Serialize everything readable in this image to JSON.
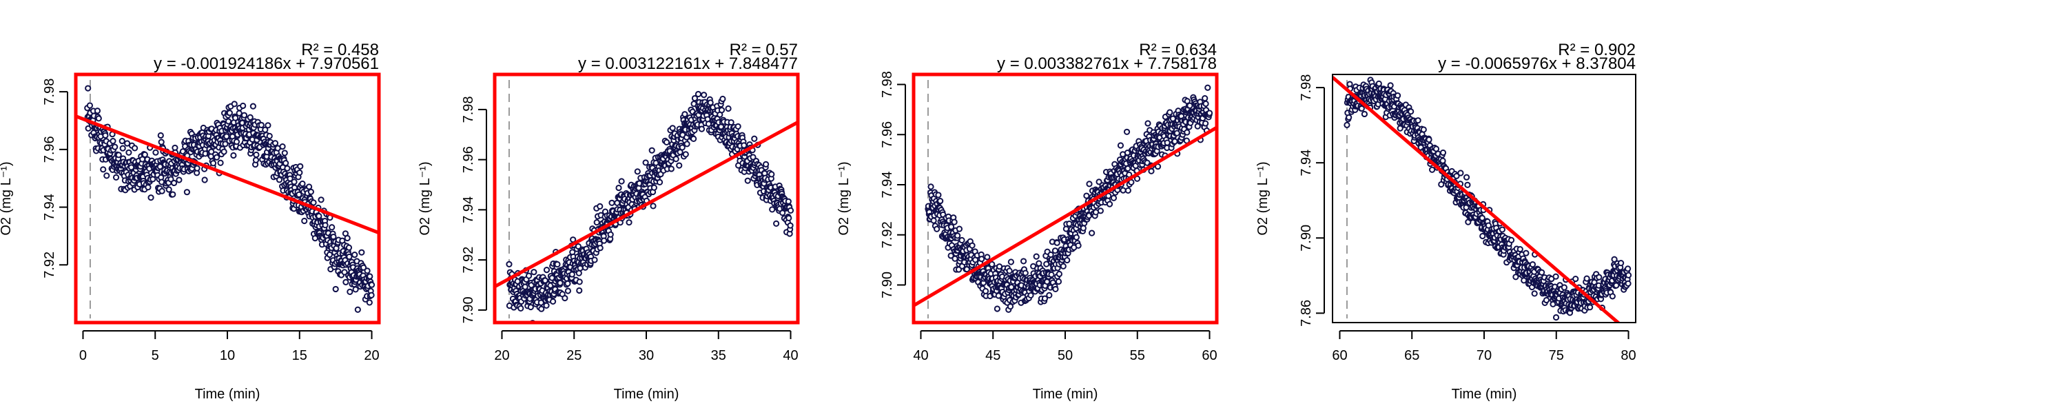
{
  "chart_data": [
    {
      "type": "scatter",
      "title": "",
      "xlabel": "Time (min)",
      "ylabel": "O2 (mg L⁻¹)",
      "xlim": [
        -0.5,
        20.5
      ],
      "ylim": [
        7.9,
        7.986
      ],
      "xticks": [
        0,
        5,
        10,
        15,
        20
      ],
      "yticks": [
        7.92,
        7.94,
        7.96,
        7.98
      ],
      "r2_label": "R² = 0.458",
      "equation": "y = -0.001924186x + 7.970561",
      "fit": {
        "slope": -0.001924186,
        "intercept": 7.970561
      },
      "start_marker_x": 0.5,
      "frame_color": "#ff0000",
      "trend_points": [
        [
          0.3,
          7.97
        ],
        [
          1,
          7.968
        ],
        [
          2,
          7.957
        ],
        [
          3,
          7.952
        ],
        [
          4,
          7.953
        ],
        [
          5,
          7.955
        ],
        [
          6,
          7.952
        ],
        [
          7,
          7.957
        ],
        [
          8,
          7.96
        ],
        [
          9,
          7.962
        ],
        [
          10,
          7.967
        ],
        [
          11,
          7.968
        ],
        [
          12,
          7.963
        ],
        [
          13,
          7.959
        ],
        [
          14,
          7.95
        ],
        [
          15,
          7.945
        ],
        [
          16,
          7.937
        ],
        [
          17,
          7.928
        ],
        [
          18,
          7.922
        ],
        [
          19,
          7.917
        ],
        [
          20,
          7.912
        ]
      ],
      "noise": 0.004
    },
    {
      "type": "scatter",
      "title": "",
      "xlabel": "Time (min)",
      "ylabel": "O2 (mg L⁻¹)",
      "xlim": [
        19.5,
        40.5
      ],
      "ylim": [
        7.895,
        7.994
      ],
      "xticks": [
        20,
        25,
        30,
        35,
        40
      ],
      "yticks": [
        7.9,
        7.92,
        7.94,
        7.96,
        7.98
      ],
      "r2_label": "R² = 0.57",
      "equation": "y = 0.003122161x + 7.848477",
      "fit": {
        "slope": 0.003122161,
        "intercept": 7.848477
      },
      "start_marker_x": 20.5,
      "frame_color": "#ff0000",
      "trend_points": [
        [
          20.5,
          7.91
        ],
        [
          21,
          7.906
        ],
        [
          22,
          7.907
        ],
        [
          23,
          7.908
        ],
        [
          24,
          7.912
        ],
        [
          25,
          7.918
        ],
        [
          26,
          7.924
        ],
        [
          27,
          7.932
        ],
        [
          28,
          7.94
        ],
        [
          29,
          7.945
        ],
        [
          30,
          7.95
        ],
        [
          31,
          7.958
        ],
        [
          32,
          7.966
        ],
        [
          33,
          7.974
        ],
        [
          34,
          7.98
        ],
        [
          35,
          7.975
        ],
        [
          36,
          7.968
        ],
        [
          37,
          7.96
        ],
        [
          38,
          7.953
        ],
        [
          39,
          7.945
        ],
        [
          40,
          7.937
        ]
      ],
      "noise": 0.004
    },
    {
      "type": "scatter",
      "title": "",
      "xlabel": "Time (min)",
      "ylabel": "O2 (mg L⁻¹)",
      "xlim": [
        39.5,
        60.5
      ],
      "ylim": [
        7.885,
        7.984
      ],
      "xticks": [
        40,
        45,
        50,
        55,
        60
      ],
      "yticks": [
        7.9,
        7.92,
        7.94,
        7.96,
        7.98
      ],
      "r2_label": "R² = 0.634",
      "equation": "y = 0.003382761x + 7.758178",
      "fit": {
        "slope": 0.003382761,
        "intercept": 7.758178
      },
      "start_marker_x": 40.5,
      "frame_color": "#ff0000",
      "trend_points": [
        [
          40.5,
          7.93
        ],
        [
          41,
          7.932
        ],
        [
          42,
          7.92
        ],
        [
          43,
          7.912
        ],
        [
          44,
          7.905
        ],
        [
          45,
          7.9
        ],
        [
          46,
          7.899
        ],
        [
          47,
          7.899
        ],
        [
          48,
          7.901
        ],
        [
          49,
          7.905
        ],
        [
          50,
          7.915
        ],
        [
          51,
          7.925
        ],
        [
          52,
          7.933
        ],
        [
          53,
          7.94
        ],
        [
          54,
          7.946
        ],
        [
          55,
          7.95
        ],
        [
          56,
          7.955
        ],
        [
          57,
          7.96
        ],
        [
          58,
          7.964
        ],
        [
          59,
          7.968
        ],
        [
          60,
          7.972
        ]
      ],
      "noise": 0.004
    },
    {
      "type": "scatter",
      "title": "",
      "xlabel": "Time (min)",
      "ylabel": "O2 (mg L⁻¹)",
      "xlim": [
        59.5,
        80.5
      ],
      "ylim": [
        7.855,
        7.987
      ],
      "xticks": [
        60,
        65,
        70,
        75,
        80
      ],
      "yticks": [
        7.86,
        7.9,
        7.94,
        7.98
      ],
      "r2_label": "R² = 0.902",
      "equation": "y = -0.0065976x + 8.37804",
      "fit": {
        "slope": -0.0065976,
        "intercept": 8.37804
      },
      "start_marker_x": 60.5,
      "frame_color": "#000000",
      "trend_points": [
        [
          60.5,
          7.968
        ],
        [
          61,
          7.972
        ],
        [
          62,
          7.976
        ],
        [
          63,
          7.975
        ],
        [
          64,
          7.968
        ],
        [
          65,
          7.96
        ],
        [
          66,
          7.95
        ],
        [
          67,
          7.938
        ],
        [
          68,
          7.927
        ],
        [
          69,
          7.918
        ],
        [
          70,
          7.908
        ],
        [
          71,
          7.9
        ],
        [
          72,
          7.89
        ],
        [
          73,
          7.882
        ],
        [
          74,
          7.875
        ],
        [
          75,
          7.869
        ],
        [
          76,
          7.866
        ],
        [
          77,
          7.868
        ],
        [
          78,
          7.873
        ],
        [
          79,
          7.878
        ],
        [
          80,
          7.88
        ]
      ],
      "noise": 0.004
    }
  ]
}
